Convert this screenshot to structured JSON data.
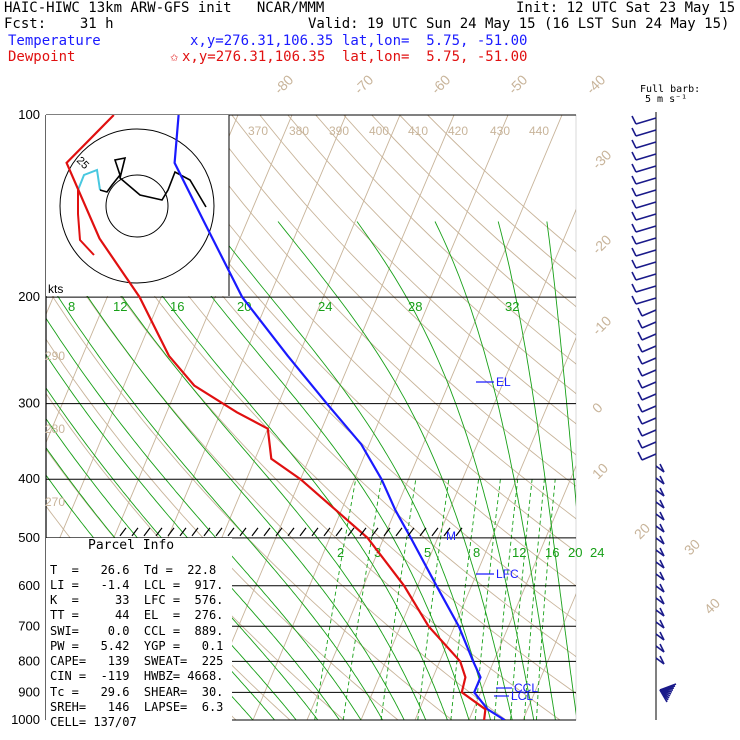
{
  "header": {
    "line1_left": "HAIC-HIWC 13km ARW-GFS init   NCAR/MMM",
    "line1_right": "Init: 12 UTC Sat 23 May 15",
    "line2_left": "Fcst:    31 h",
    "line2_right": "Valid: 19 UTC Sun 24 May 15 (16 LST Sun 24 May 15)",
    "temp_label": "Temperature",
    "temp_xy": "x,y=276.31,106.35",
    "temp_latlon": "lat,lon=  5.75, -51.00",
    "dew_label": "Dewpoint",
    "dew_xy": "x,y=276.31,106.35",
    "dew_latlon": "lat,lon=  5.75, -51.00",
    "star": "✩"
  },
  "barb_legend": {
    "line1": "Full barb:",
    "line2": "5 m s⁻¹"
  },
  "hodograph": {
    "label": "kts",
    "ring_label": "25"
  },
  "colors": {
    "temperature": "#1a1aff",
    "dewpoint": "#e01010",
    "isotherm": "#c8b49a",
    "dry_adiabat": "#c8b49a",
    "moist_adiabat": "#18a018",
    "mixing_ratio": "#18a018",
    "isobar": "#000000",
    "wind_barb": "#1a1a8a"
  },
  "chart_data": {
    "type": "line",
    "title": "",
    "ylabel": "",
    "xlabel": "",
    "y_scale": "log-pressure",
    "ylim": [
      1000,
      100
    ],
    "pressure_ticks": [
      100,
      200,
      300,
      400,
      500,
      600,
      700,
      800,
      900,
      1000
    ],
    "isotherm_labels": [
      "-80",
      "-70",
      "-60",
      "-50",
      "-40",
      "-30",
      "-20",
      "-10",
      "0",
      "10",
      "20",
      "30",
      "40"
    ],
    "theta_labels": [
      "370",
      "380",
      "390",
      "400",
      "410",
      "420",
      "430",
      "440",
      "290",
      "280",
      "270"
    ],
    "mixing_ratio_labels_upper": [
      "8",
      "12",
      "16",
      "20",
      "24",
      "28",
      "32"
    ],
    "mixing_ratio_labels_lower": [
      "2",
      "3",
      "5",
      "8",
      "12",
      "16",
      "20",
      "24"
    ],
    "series": [
      {
        "name": "Temperature",
        "points": [
          [
            1000,
            26.6
          ],
          [
            960,
            22.6
          ],
          [
            900,
            18.8
          ],
          [
            850,
            18.8
          ],
          [
            800,
            16.2
          ],
          [
            700,
            10.8
          ],
          [
            600,
            3.5
          ],
          [
            500,
            -5
          ],
          [
            450,
            -10
          ],
          [
            400,
            -15
          ],
          [
            350,
            -21.5
          ],
          [
            300,
            -31
          ],
          [
            250,
            -42
          ],
          [
            200,
            -55
          ],
          [
            150,
            -68
          ],
          [
            120,
            -78
          ],
          [
            100,
            -81
          ]
        ]
      },
      {
        "name": "Dewpoint",
        "points": [
          [
            1000,
            22.8
          ],
          [
            960,
            22.2
          ],
          [
            900,
            16.5
          ],
          [
            850,
            16
          ],
          [
            800,
            13.8
          ],
          [
            700,
            5.2
          ],
          [
            600,
            -2.5
          ],
          [
            500,
            -13
          ],
          [
            450,
            -21
          ],
          [
            400,
            -30
          ],
          [
            370,
            -37
          ],
          [
            330,
            -40
          ],
          [
            310,
            -47
          ],
          [
            280,
            -57
          ],
          [
            250,
            -64
          ],
          [
            200,
            -74
          ],
          [
            160,
            -86
          ],
          [
            120,
            -98
          ],
          [
            100,
            -93
          ]
        ]
      }
    ],
    "annotations": [
      "EL",
      "LFC",
      "CCL",
      "LCL",
      "M"
    ]
  },
  "parcel_info": {
    "title": "Parcel Info",
    "rows": [
      "T  =   26.6  Td =  22.8",
      "LI =   -1.4  LCL =  917.",
      "K  =     33  LFC =  576.",
      "TT =     44  EL  =  276.",
      "SWI=    0.0  CCL =  889.",
      "PW =   5.42  YGP =   0.1",
      "CAPE=   139  SWEAT=  225",
      "CIN =  -119  HWBZ= 4668.",
      "Tc =   29.6  SHEAR=  30.",
      "SREH=   146  LAPSE=  6.3",
      "CELL= 137/07"
    ]
  }
}
